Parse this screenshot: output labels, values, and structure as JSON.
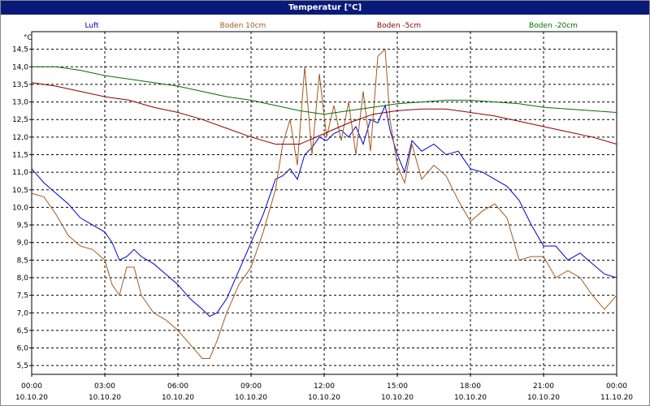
{
  "chart_data": {
    "type": "line",
    "title": "Temperatur [°C]",
    "ylabel": "°C",
    "ylim": [
      5.25,
      15.0
    ],
    "xlim": [
      0,
      24
    ],
    "grid": true,
    "legend_placement": "top",
    "yticks": [
      "5,5",
      "6,0",
      "6,5",
      "7,0",
      "7,5",
      "8,0",
      "8,5",
      "9,0",
      "9,5",
      "10,0",
      "10,5",
      "11,0",
      "11,5",
      "12,0",
      "12,5",
      "13,0",
      "13,5",
      "14,0",
      "14,5"
    ],
    "xticks": [
      {
        "time": "00:00",
        "date": "10.10.20"
      },
      {
        "time": "03:00",
        "date": "10.10.20"
      },
      {
        "time": "06:00",
        "date": "10.10.20"
      },
      {
        "time": "09:00",
        "date": "10.10.20"
      },
      {
        "time": "12:00",
        "date": "10.10.20"
      },
      {
        "time": "15:00",
        "date": "10.10.20"
      },
      {
        "time": "18:00",
        "date": "10.10.20"
      },
      {
        "time": "21:00",
        "date": "10.10.20"
      },
      {
        "time": "00:00",
        "date": "11.10.20"
      }
    ],
    "series": [
      {
        "name": "Luft",
        "color": "#0000cc",
        "x": [
          0,
          0.5,
          1,
          1.5,
          2,
          2.5,
          3,
          3.3,
          3.6,
          3.9,
          4.2,
          4.5,
          5,
          5.5,
          6,
          6.5,
          7,
          7.3,
          7.6,
          8,
          8.5,
          9,
          9.5,
          10,
          10.3,
          10.6,
          10.9,
          11.2,
          11.5,
          11.8,
          12.1,
          12.4,
          12.7,
          13,
          13.3,
          13.6,
          13.9,
          14.2,
          14.5,
          14.7,
          15,
          15.3,
          15.6,
          16,
          16.5,
          17,
          17.5,
          18,
          18.5,
          19,
          19.5,
          20,
          20.5,
          21,
          21.5,
          22,
          22.5,
          23,
          23.5,
          24
        ],
        "y": [
          11.1,
          10.7,
          10.4,
          10.1,
          9.7,
          9.5,
          9.3,
          9.0,
          8.5,
          8.6,
          8.8,
          8.6,
          8.4,
          8.1,
          7.8,
          7.4,
          7.1,
          6.9,
          7.0,
          7.4,
          8.2,
          9.0,
          9.8,
          10.8,
          10.9,
          11.1,
          10.8,
          11.5,
          11.7,
          12.0,
          11.9,
          12.1,
          12.2,
          12.0,
          12.3,
          11.8,
          12.5,
          12.4,
          12.9,
          12.2,
          11.5,
          11.0,
          11.9,
          11.6,
          11.8,
          11.5,
          11.6,
          11.1,
          11.0,
          10.8,
          10.6,
          10.2,
          9.5,
          8.9,
          8.9,
          8.5,
          8.7,
          8.4,
          8.1,
          8.0
        ]
      },
      {
        "name": "Boden 10cm",
        "color": "#a05a1e",
        "x": [
          0,
          0.5,
          1,
          1.5,
          2,
          2.5,
          3,
          3.3,
          3.6,
          3.9,
          4.2,
          4.5,
          5,
          5.5,
          6,
          6.5,
          7,
          7.3,
          7.6,
          8,
          8.5,
          9,
          9.5,
          10,
          10.3,
          10.6,
          10.9,
          11.2,
          11.5,
          11.8,
          12.1,
          12.4,
          12.7,
          13,
          13.3,
          13.6,
          13.9,
          14.2,
          14.5,
          14.7,
          15,
          15.3,
          15.6,
          16,
          16.5,
          17,
          17.5,
          18,
          18.5,
          19,
          19.5,
          20,
          20.5,
          21,
          21.5,
          22,
          22.5,
          23,
          23.5,
          24
        ],
        "y": [
          10.4,
          10.3,
          9.8,
          9.2,
          8.9,
          8.8,
          8.5,
          7.8,
          7.5,
          8.3,
          8.3,
          7.5,
          7.0,
          6.8,
          6.5,
          6.1,
          5.7,
          5.7,
          6.2,
          7.0,
          7.8,
          8.3,
          9.3,
          10.5,
          11.8,
          12.5,
          11.2,
          14.0,
          11.5,
          13.8,
          12.0,
          12.9,
          11.9,
          13.0,
          11.5,
          13.3,
          11.6,
          14.3,
          14.5,
          12.5,
          11.2,
          10.7,
          11.8,
          10.8,
          11.2,
          10.9,
          10.2,
          9.6,
          9.9,
          10.1,
          9.7,
          8.5,
          8.6,
          8.6,
          8.0,
          8.2,
          8.0,
          7.5,
          7.1,
          7.5
        ]
      },
      {
        "name": "Boden -5cm",
        "color": "#8b0000",
        "x": [
          0,
          1,
          2,
          3,
          4,
          5,
          6,
          7,
          8,
          9,
          10,
          11,
          12,
          13,
          14,
          15,
          16,
          17,
          18,
          19,
          20,
          21,
          22,
          23,
          24
        ],
        "y": [
          13.55,
          13.45,
          13.3,
          13.15,
          13.05,
          12.85,
          12.7,
          12.5,
          12.25,
          12.0,
          11.8,
          11.8,
          12.1,
          12.4,
          12.65,
          12.75,
          12.8,
          12.8,
          12.7,
          12.6,
          12.45,
          12.3,
          12.15,
          12.0,
          11.8
        ]
      },
      {
        "name": "Boden -20cm",
        "color": "#007000",
        "x": [
          0,
          1,
          2,
          3,
          4,
          5,
          6,
          7,
          8,
          9,
          10,
          11,
          12,
          13,
          14,
          15,
          16,
          17,
          18,
          19,
          20,
          21,
          22,
          23,
          24
        ],
        "y": [
          14.0,
          14.0,
          13.9,
          13.75,
          13.65,
          13.55,
          13.45,
          13.3,
          13.15,
          13.05,
          12.9,
          12.75,
          12.65,
          12.75,
          12.85,
          12.95,
          13.0,
          13.05,
          13.05,
          13.0,
          12.95,
          12.85,
          12.8,
          12.75,
          12.7
        ]
      }
    ]
  }
}
